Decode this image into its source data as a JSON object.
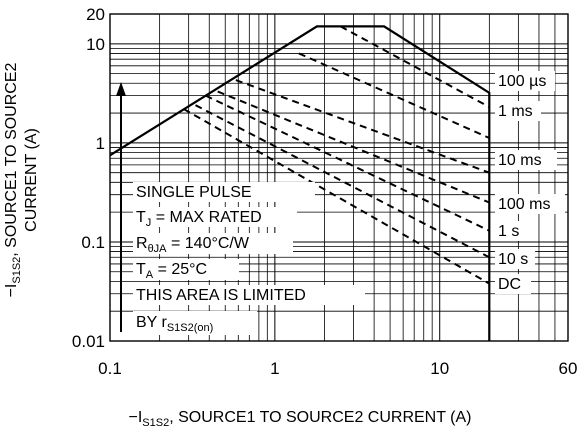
{
  "chart_data": {
    "type": "line",
    "scale": "log-log",
    "xlim": [
      0.1,
      60
    ],
    "ylim": [
      0.01,
      20
    ],
    "x_ticks": [
      0.1,
      1,
      10,
      60
    ],
    "x_tick_labels": [
      "0.1",
      "1",
      "10",
      "60"
    ],
    "y_ticks": [
      0.01,
      0.1,
      1,
      10,
      20
    ],
    "y_tick_labels": [
      "0.01",
      "0.1",
      "1",
      "10",
      "20"
    ],
    "xlabel_prefix": "−I",
    "xlabel_sub": "S1S2",
    "xlabel_rest": ", SOURCE1 TO SOURCE2 CURRENT (A)",
    "ylabel_line1_prefix": "−I",
    "ylabel_line1_sub": "S1S2",
    "ylabel_line1_rest": ", SOURCE1 TO SOURCE2",
    "ylabel_line2": "CURRENT (A)",
    "grid": true,
    "envelope": {
      "x": [
        0.1,
        1.8,
        4.6,
        20,
        20
      ],
      "y": [
        0.75,
        15,
        15,
        3.2,
        0.01
      ]
    },
    "series": [
      {
        "name": "100 µs",
        "x": [
          2.5,
          20
        ],
        "y": [
          15,
          2.3
        ]
      },
      {
        "name": "1 ms",
        "x": [
          1.4,
          20
        ],
        "y": [
          8.0,
          1.12
        ]
      },
      {
        "name": "10 ms",
        "x": [
          0.58,
          20
        ],
        "y": [
          4.3,
          0.5
        ]
      },
      {
        "name": "100 ms",
        "x": [
          0.45,
          20
        ],
        "y": [
          3.3,
          0.25
        ]
      },
      {
        "name": "1 s",
        "x": [
          0.38,
          20
        ],
        "y": [
          3.0,
          0.13
        ]
      },
      {
        "name": "10 s",
        "x": [
          0.33,
          20
        ],
        "y": [
          2.4,
          0.07
        ]
      },
      {
        "name": "DC",
        "x": [
          0.28,
          20
        ],
        "y": [
          2.2,
          0.038
        ]
      }
    ],
    "series_label_sub": {
      "name": "ms",
      "note": ""
    },
    "annotations": {
      "line1": "SINGLE PULSE",
      "line2_prefix": "T",
      "line2_sub": "J",
      "line2_rest": " = MAX RATED",
      "line3_prefix": "R",
      "line3_sub": "θJA",
      "line3_rest": " = 140°C/W",
      "line4_prefix": "T",
      "line4_sub": "A",
      "line4_rest": " = 25°C",
      "line5": "THIS AREA IS LIMITED",
      "line6_prefix": "BY r",
      "line6_sub": "S1S2(on)"
    }
  }
}
